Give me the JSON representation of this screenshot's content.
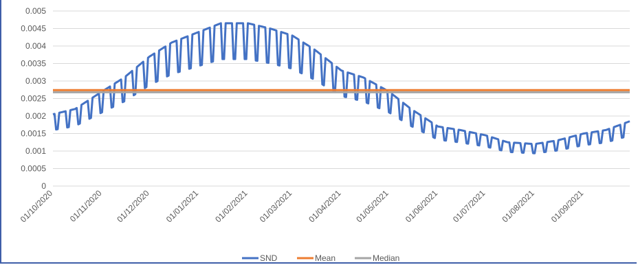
{
  "chart_data": {
    "type": "line",
    "title": "",
    "xlabel": "",
    "ylabel": "",
    "x_range": [
      "2020-10-01",
      "2021-09-30"
    ],
    "x_tick_labels": [
      "01/10/2020",
      "01/11/2020",
      "01/12/2020",
      "01/01/2021",
      "01/02/2021",
      "01/03/2021",
      "01/04/2021",
      "01/05/2021",
      "01/06/2021",
      "01/07/2021",
      "01/08/2021",
      "01/09/2021"
    ],
    "x_ticks": [
      "2020-10-01",
      "2020-11-01",
      "2020-12-01",
      "2021-01-01",
      "2021-02-01",
      "2021-03-01",
      "2021-04-01",
      "2021-05-01",
      "2021-06-01",
      "2021-07-01",
      "2021-08-01",
      "2021-09-01"
    ],
    "y_tick_labels": [
      "0",
      "0.0005",
      "0.001",
      "0.0015",
      "0.002",
      "0.0025",
      "0.003",
      "0.0035",
      "0.004",
      "0.0045",
      "0.005"
    ],
    "ylim": [
      0,
      0.005
    ],
    "grid": true,
    "legend_position": "bottom",
    "series": [
      {
        "name": "SND",
        "color": "#4472c4",
        "weekday_points": [
          [
            "2020-10-01",
            0.00205
          ],
          [
            "2020-10-15",
            0.0022
          ],
          [
            "2020-11-01",
            0.0027
          ],
          [
            "2020-11-15",
            0.0031
          ],
          [
            "2020-12-01",
            0.0037
          ],
          [
            "2020-12-15",
            0.0041
          ],
          [
            "2021-01-01",
            0.0044
          ],
          [
            "2021-01-15",
            0.00465
          ],
          [
            "2021-02-01",
            0.00465
          ],
          [
            "2021-02-15",
            0.0045
          ],
          [
            "2021-03-01",
            0.0043
          ],
          [
            "2021-03-15",
            0.0039
          ],
          [
            "2021-04-01",
            0.0033
          ],
          [
            "2021-04-15",
            0.0031
          ],
          [
            "2021-05-01",
            0.0027
          ],
          [
            "2021-05-15",
            0.0022
          ],
          [
            "2021-06-01",
            0.0017
          ],
          [
            "2021-06-15",
            0.0016
          ],
          [
            "2021-07-01",
            0.00145
          ],
          [
            "2021-07-15",
            0.00125
          ],
          [
            "2021-08-01",
            0.0012
          ],
          [
            "2021-08-15",
            0.0013
          ],
          [
            "2021-09-01",
            0.0015
          ],
          [
            "2021-09-15",
            0.0016
          ],
          [
            "2021-09-30",
            0.00185
          ]
        ],
        "weekend_dip_fraction": 0.22
      },
      {
        "name": "Mean",
        "color": "#ed7d31",
        "value": 0.00274
      },
      {
        "name": "Median",
        "color": "#a5a5a5",
        "value": 0.00268
      }
    ]
  }
}
